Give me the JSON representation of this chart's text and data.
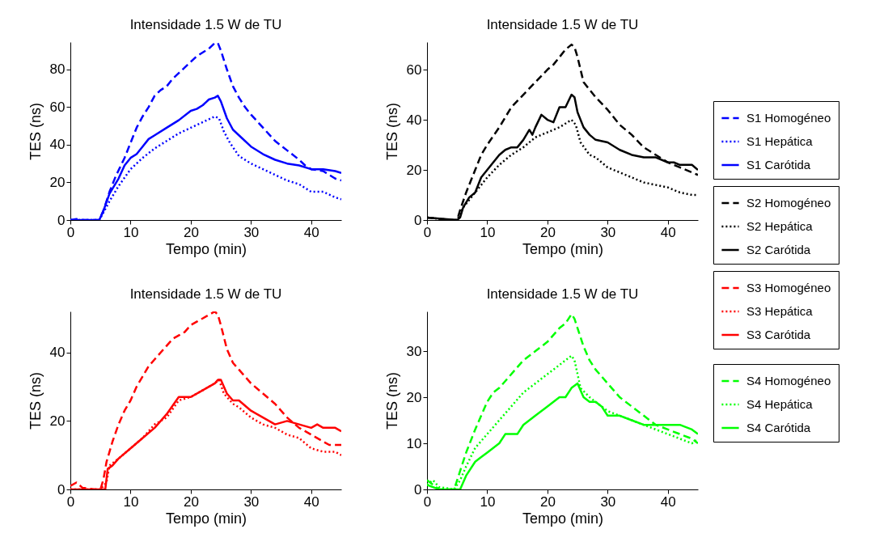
{
  "chart_data": [
    {
      "type": "line",
      "title": "Intensidade 1.5 W de TU",
      "xlabel": "Tempo (min)",
      "ylabel": "TES (ns)",
      "xlim": [
        0,
        45
      ],
      "xticks": [
        0,
        10,
        20,
        30,
        40
      ],
      "ylim": [
        0,
        94.5
      ],
      "yticks": [
        0,
        20,
        40,
        60,
        80
      ],
      "legend": "right",
      "series": [
        {
          "name": "S1 Homogéneo",
          "color": "#0000ff",
          "line_style": "dashed",
          "x": [
            0,
            1,
            2,
            4.8,
            5.5,
            6.5,
            7.5,
            9,
            10,
            11,
            12,
            13,
            14,
            15,
            16,
            17,
            18,
            19,
            20,
            21,
            22,
            23,
            24,
            24.5,
            25,
            26,
            27,
            28,
            29,
            30,
            32,
            34,
            36,
            38,
            39,
            40,
            42,
            43,
            44,
            45
          ],
          "values": [
            0,
            0.5,
            0,
            0,
            5,
            15,
            23,
            33,
            41,
            49,
            55,
            60,
            66,
            69,
            71,
            75,
            78,
            81,
            84,
            87,
            89,
            91,
            94,
            94,
            90,
            80,
            71,
            65,
            60,
            56,
            49,
            42,
            37,
            32,
            29,
            27,
            26,
            24,
            22,
            21
          ]
        },
        {
          "name": "S1 Hepática",
          "color": "#0000ff",
          "line_style": "dotted",
          "x": [
            0,
            4.8,
            5.5,
            6.5,
            8,
            10,
            12,
            14,
            16,
            18,
            20,
            22,
            24,
            24.7,
            25.5,
            26.5,
            28,
            30,
            32,
            34,
            36,
            38,
            40,
            42,
            44,
            45
          ],
          "values": [
            0,
            0,
            4,
            10,
            18,
            27,
            33,
            38,
            42,
            46,
            49,
            52,
            55,
            54,
            47,
            41,
            34,
            30,
            27,
            24,
            21,
            19,
            15,
            15,
            12,
            11
          ]
        },
        {
          "name": "S1 Carótida",
          "color": "#0000ff",
          "line_style": "solid",
          "x": [
            0,
            4.8,
            5.5,
            6.5,
            8,
            9,
            10,
            11,
            12,
            13,
            14,
            16,
            18,
            20,
            21,
            22,
            23,
            24,
            24.5,
            25,
            26,
            27,
            28,
            30,
            32,
            34,
            36,
            38,
            40,
            42,
            44,
            45
          ],
          "values": [
            0,
            0,
            5,
            14,
            22,
            29,
            33,
            35,
            39,
            43,
            45,
            49,
            53,
            58,
            59,
            61,
            64,
            65,
            66,
            63,
            54,
            48,
            45,
            39,
            35,
            32,
            30,
            29,
            27,
            27,
            26,
            25
          ]
        }
      ]
    },
    {
      "type": "line",
      "title": "Intensidade 1.5 W de TU",
      "xlabel": "Tempo (min)",
      "ylabel": "TES (ns)",
      "xlim": [
        0,
        45
      ],
      "xticks": [
        0,
        10,
        20,
        30,
        40
      ],
      "ylim": [
        0,
        71
      ],
      "yticks": [
        0,
        20,
        40,
        60
      ],
      "legend": "right",
      "series": [
        {
          "name": "S2 Homogéneo",
          "color": "#000000",
          "line_style": "dashed",
          "x": [
            0,
            2,
            4,
            5,
            5.5,
            6.5,
            8,
            9,
            10,
            12,
            14,
            16,
            18,
            20,
            21,
            22,
            23,
            24,
            24.5,
            25,
            26,
            27,
            28,
            30,
            32,
            34,
            36,
            38,
            40,
            42,
            44,
            45
          ],
          "values": [
            1,
            0.5,
            0,
            0,
            4,
            11,
            20,
            26,
            30,
            37,
            45,
            50,
            55,
            60,
            62,
            65,
            68,
            70,
            69,
            65,
            55,
            52,
            49,
            44,
            38,
            34,
            29,
            26,
            23,
            21,
            19,
            18
          ]
        },
        {
          "name": "S2 Hepática",
          "color": "#000000",
          "line_style": "dotted",
          "x": [
            0,
            2,
            4,
            5,
            6,
            8,
            10,
            12,
            14,
            16,
            18,
            20,
            22,
            24,
            24.7,
            25.5,
            27,
            28,
            30,
            32,
            34,
            36,
            38,
            40,
            42,
            44,
            45
          ],
          "values": [
            1,
            0.5,
            0,
            0,
            5,
            11,
            17,
            22,
            26,
            29,
            33,
            35,
            37,
            40,
            38,
            31,
            26,
            25,
            21,
            19,
            17,
            15,
            14,
            13,
            11,
            10,
            10
          ]
        },
        {
          "name": "S2 Carótida",
          "color": "#000000",
          "line_style": "solid",
          "x": [
            0,
            5,
            5.5,
            6,
            7,
            8,
            9,
            10,
            11,
            12,
            13,
            14,
            15,
            16,
            17,
            17.5,
            18,
            19,
            20,
            21,
            22,
            23,
            24,
            24.5,
            25,
            26,
            27,
            28,
            30,
            32,
            34,
            36,
            38,
            40,
            41,
            42,
            44,
            45
          ],
          "values": [
            1,
            0,
            1,
            5,
            9,
            11,
            17,
            20,
            23,
            26,
            28,
            29,
            29,
            32,
            36,
            34,
            37,
            42,
            40,
            39,
            45,
            45,
            50,
            49,
            43,
            37,
            34,
            32,
            31,
            28,
            26,
            25,
            25,
            23,
            23,
            22,
            22,
            20
          ]
        }
      ]
    },
    {
      "type": "line",
      "title": "Intensidade 1.5 W de TU",
      "xlabel": "Tempo (min)",
      "ylabel": "TES (ns)",
      "xlim": [
        0,
        45
      ],
      "xticks": [
        0,
        10,
        20,
        30,
        40
      ],
      "ylim": [
        0,
        52
      ],
      "yticks": [
        0,
        20,
        40
      ],
      "legend": "right",
      "series": [
        {
          "name": "S3 Homogéneo",
          "color": "#ff0000",
          "line_style": "dashed",
          "x": [
            0,
            1,
            2,
            4,
            5,
            5.5,
            6,
            7,
            8,
            9,
            10,
            11,
            12,
            13,
            14,
            15,
            16,
            17,
            18,
            19,
            20,
            21,
            22,
            23,
            24,
            24.5,
            25,
            26,
            27,
            28,
            30,
            32,
            34,
            36,
            38,
            40,
            42,
            43,
            45
          ],
          "values": [
            1,
            2,
            0.5,
            0,
            0,
            3,
            8,
            14,
            19,
            23,
            26,
            30,
            33,
            36,
            38,
            40,
            42,
            44,
            45,
            46,
            48,
            49,
            50,
            51,
            52,
            51,
            48,
            41,
            37,
            35,
            31,
            28,
            25,
            21,
            18,
            16,
            14,
            13,
            13
          ]
        },
        {
          "name": "S3 Hepática",
          "color": "#ff0000",
          "line_style": "dotted",
          "x": [
            0,
            5,
            6,
            6.5,
            8,
            10,
            12,
            14,
            16,
            18,
            20,
            22,
            24,
            24.7,
            25.5,
            27,
            28,
            30,
            32,
            34,
            36,
            38,
            40,
            42,
            44,
            45
          ],
          "values": [
            0,
            0,
            2,
            7,
            9,
            12,
            15,
            19,
            21,
            26,
            27,
            29,
            31,
            32,
            28,
            25,
            24,
            21,
            19,
            18,
            16,
            15,
            12,
            11,
            11,
            10
          ]
        },
        {
          "name": "S3 Carótida",
          "color": "#ff0000",
          "line_style": "solid",
          "x": [
            0,
            5.8,
            6.2,
            7,
            8,
            10,
            12,
            14,
            16,
            18,
            19,
            20,
            22,
            24,
            24.5,
            25,
            26,
            27,
            28,
            30,
            32,
            34,
            36,
            38,
            40,
            41,
            42,
            44,
            45
          ],
          "values": [
            0,
            0,
            6,
            7,
            9,
            12,
            15,
            18,
            22,
            27,
            27,
            27,
            29,
            31,
            32,
            32,
            28,
            26,
            26,
            23,
            21,
            19,
            20,
            19,
            18,
            19,
            18,
            18,
            17
          ]
        }
      ]
    },
    {
      "type": "line",
      "title": "Intensidade 1.5 W de TU",
      "xlabel": "Tempo (min)",
      "ylabel": "TES (ns)",
      "xlim": [
        0,
        45
      ],
      "xticks": [
        0,
        10,
        20,
        30,
        40
      ],
      "ylim": [
        0,
        38.6
      ],
      "yticks": [
        0,
        10,
        20,
        30
      ],
      "legend": "right",
      "series": [
        {
          "name": "S4 Homogéneo",
          "color": "#00ff00",
          "line_style": "dashed",
          "x": [
            0,
            1,
            2,
            4,
            4.5,
            5.5,
            6.5,
            8,
            9,
            10,
            11,
            12,
            14,
            16,
            18,
            20,
            22,
            23,
            24,
            24.5,
            25,
            26,
            27,
            28,
            30,
            32,
            34,
            36,
            38,
            40,
            42,
            44,
            45
          ],
          "values": [
            2,
            1,
            0,
            0,
            0,
            4,
            8,
            13,
            16,
            19,
            21,
            22,
            25,
            28,
            30,
            32,
            35,
            36,
            38,
            37,
            35,
            31,
            28,
            26,
            23,
            20,
            18,
            16,
            14,
            13,
            12,
            11,
            10
          ]
        },
        {
          "name": "S4 Hepática",
          "color": "#00ff00",
          "line_style": "dotted",
          "x": [
            0,
            1,
            2,
            4.5,
            5.5,
            6.5,
            8,
            10,
            12,
            14,
            16,
            18,
            20,
            22,
            24,
            24.5,
            25.5,
            27,
            28,
            30,
            32,
            34,
            36,
            38,
            40,
            42,
            44,
            45
          ],
          "values": [
            1,
            2,
            0.5,
            0,
            2,
            5,
            9,
            12,
            15,
            18,
            21,
            23,
            25,
            27,
            29,
            28,
            22,
            20,
            19,
            17,
            16,
            15,
            14,
            13,
            12,
            11,
            10,
            11
          ]
        },
        {
          "name": "S4 Carótida",
          "color": "#00ff00",
          "line_style": "solid",
          "x": [
            0,
            2,
            5.5,
            6.5,
            8,
            9,
            10,
            11,
            12,
            13,
            14,
            15,
            16,
            18,
            20,
            22,
            23,
            24,
            25,
            26,
            27,
            28,
            29,
            30,
            32,
            34,
            36,
            38,
            40,
            42,
            44,
            45
          ],
          "values": [
            1,
            0,
            0,
            3,
            6,
            7,
            8,
            9,
            10,
            12,
            12,
            12,
            14,
            16,
            18,
            20,
            20,
            22,
            23,
            20,
            19,
            19,
            18,
            16,
            16,
            15,
            14,
            14,
            14,
            14,
            13,
            12
          ]
        }
      ]
    }
  ]
}
